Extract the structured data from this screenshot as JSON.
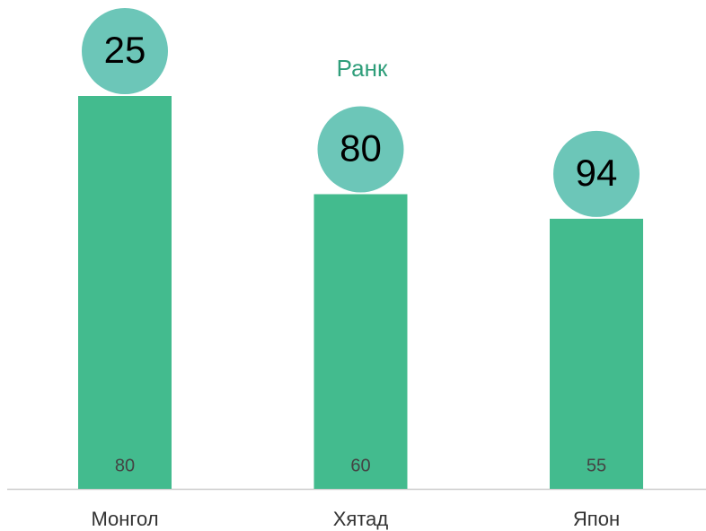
{
  "chart_data": {
    "type": "bar",
    "categories": [
      "Монгол",
      "Хятад",
      "Япон"
    ],
    "series": [
      {
        "color": "#43bb8e",
        "values": [
          80,
          60,
          55
        ]
      }
    ],
    "rank": {
      "name": "Ранк",
      "color": "#6cc6b8",
      "values": [
        25,
        80,
        94
      ]
    },
    "ylim": [
      0,
      80
    ]
  }
}
